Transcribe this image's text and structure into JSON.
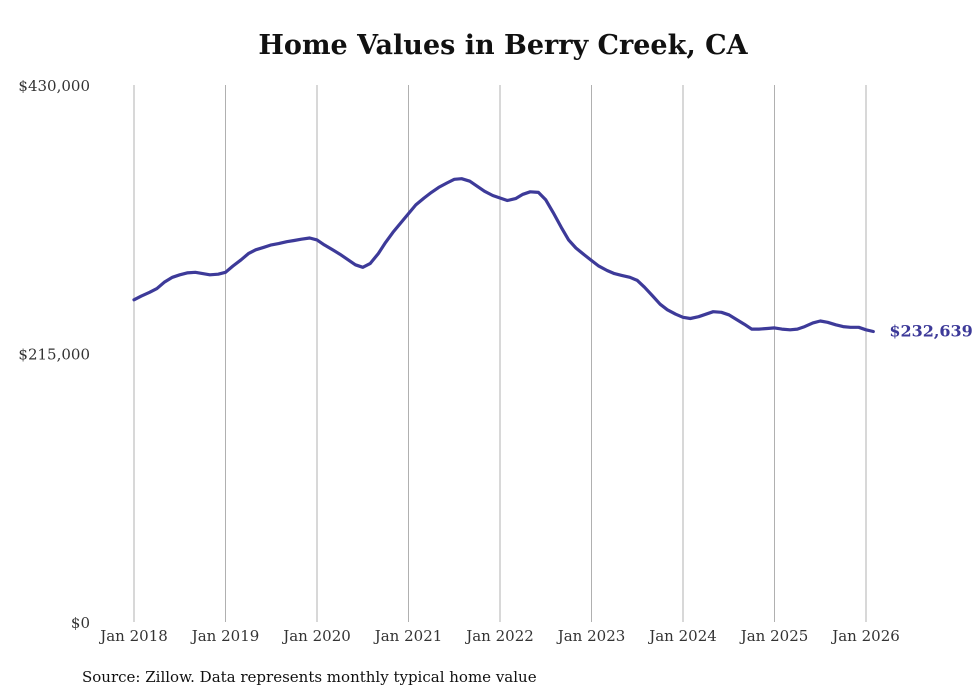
{
  "chart_data": {
    "type": "line",
    "title": "Home Values in Berry Creek, CA",
    "source": "Source: Zillow. Data represents monthly typical home value",
    "xlabel": "",
    "ylabel": "",
    "ylim": [
      0,
      430000
    ],
    "y_ticks": [
      {
        "value": 0,
        "label": "$0"
      },
      {
        "value": 215000,
        "label": "$215,000"
      },
      {
        "value": 430000,
        "label": "$430,000"
      }
    ],
    "x_ticks": [
      {
        "value": 2018.0,
        "label": "Jan 2018"
      },
      {
        "value": 2019.0,
        "label": "Jan 2019"
      },
      {
        "value": 2020.0,
        "label": "Jan 2020"
      },
      {
        "value": 2021.0,
        "label": "Jan 2021"
      },
      {
        "value": 2022.0,
        "label": "Jan 2022"
      },
      {
        "value": 2023.0,
        "label": "Jan 2023"
      },
      {
        "value": 2024.0,
        "label": "Jan 2024"
      },
      {
        "value": 2025.0,
        "label": "Jan 2025"
      },
      {
        "value": 2026.0,
        "label": "Jan 2026"
      }
    ],
    "xlim": [
      2018.0,
      2026.0
    ],
    "vertical_grid": true,
    "line_color": "#3d3a99",
    "end_label": "$232,639",
    "series": [
      {
        "values": [
          [
            2018.0,
            258000
          ],
          [
            2018.08,
            261000
          ],
          [
            2018.17,
            264000
          ],
          [
            2018.25,
            267000
          ],
          [
            2018.33,
            272000
          ],
          [
            2018.42,
            276000
          ],
          [
            2018.5,
            278000
          ],
          [
            2018.58,
            279500
          ],
          [
            2018.67,
            280000
          ],
          [
            2018.75,
            279000
          ],
          [
            2018.83,
            278000
          ],
          [
            2018.92,
            278500
          ],
          [
            2019.0,
            280000
          ],
          [
            2019.08,
            285000
          ],
          [
            2019.17,
            290000
          ],
          [
            2019.25,
            295000
          ],
          [
            2019.33,
            298000
          ],
          [
            2019.42,
            300000
          ],
          [
            2019.5,
            302000
          ],
          [
            2019.58,
            303000
          ],
          [
            2019.67,
            304500
          ],
          [
            2019.75,
            305500
          ],
          [
            2019.83,
            306500
          ],
          [
            2019.92,
            307500
          ],
          [
            2020.0,
            306000
          ],
          [
            2020.08,
            302000
          ],
          [
            2020.17,
            298000
          ],
          [
            2020.25,
            294500
          ],
          [
            2020.33,
            290500
          ],
          [
            2020.42,
            286000
          ],
          [
            2020.5,
            284000
          ],
          [
            2020.58,
            287000
          ],
          [
            2020.67,
            295000
          ],
          [
            2020.75,
            304000
          ],
          [
            2020.83,
            312000
          ],
          [
            2020.92,
            320000
          ],
          [
            2021.0,
            327000
          ],
          [
            2021.08,
            334000
          ],
          [
            2021.17,
            339500
          ],
          [
            2021.25,
            344000
          ],
          [
            2021.33,
            348000
          ],
          [
            2021.42,
            351500
          ],
          [
            2021.5,
            354500
          ],
          [
            2021.58,
            355000
          ],
          [
            2021.67,
            353000
          ],
          [
            2021.75,
            349000
          ],
          [
            2021.83,
            345000
          ],
          [
            2021.92,
            341500
          ],
          [
            2022.0,
            339500
          ],
          [
            2022.08,
            337500
          ],
          [
            2022.17,
            339000
          ],
          [
            2022.25,
            342500
          ],
          [
            2022.33,
            344500
          ],
          [
            2022.42,
            344000
          ],
          [
            2022.5,
            338000
          ],
          [
            2022.58,
            328000
          ],
          [
            2022.67,
            316000
          ],
          [
            2022.75,
            306000
          ],
          [
            2022.83,
            299500
          ],
          [
            2022.92,
            294000
          ],
          [
            2023.0,
            289500
          ],
          [
            2023.08,
            285000
          ],
          [
            2023.17,
            281500
          ],
          [
            2023.25,
            279000
          ],
          [
            2023.33,
            277500
          ],
          [
            2023.42,
            276000
          ],
          [
            2023.5,
            273500
          ],
          [
            2023.58,
            268000
          ],
          [
            2023.67,
            261000
          ],
          [
            2023.75,
            254500
          ],
          [
            2023.83,
            250000
          ],
          [
            2023.92,
            246500
          ],
          [
            2024.0,
            244000
          ],
          [
            2024.08,
            243000
          ],
          [
            2024.17,
            244500
          ],
          [
            2024.25,
            246500
          ],
          [
            2024.33,
            248500
          ],
          [
            2024.42,
            248000
          ],
          [
            2024.5,
            246000
          ],
          [
            2024.58,
            242500
          ],
          [
            2024.67,
            238500
          ],
          [
            2024.75,
            234500
          ],
          [
            2024.83,
            234500
          ],
          [
            2024.92,
            235000
          ],
          [
            2025.0,
            235500
          ],
          [
            2025.08,
            234500
          ],
          [
            2025.17,
            234000
          ],
          [
            2025.25,
            234500
          ],
          [
            2025.33,
            236500
          ],
          [
            2025.42,
            239500
          ],
          [
            2025.5,
            241000
          ],
          [
            2025.58,
            240000
          ],
          [
            2025.67,
            238000
          ],
          [
            2025.75,
            236500
          ],
          [
            2025.83,
            236000
          ],
          [
            2025.92,
            236000
          ],
          [
            2026.0,
            234000
          ],
          [
            2026.08,
            232639
          ]
        ]
      }
    ]
  }
}
